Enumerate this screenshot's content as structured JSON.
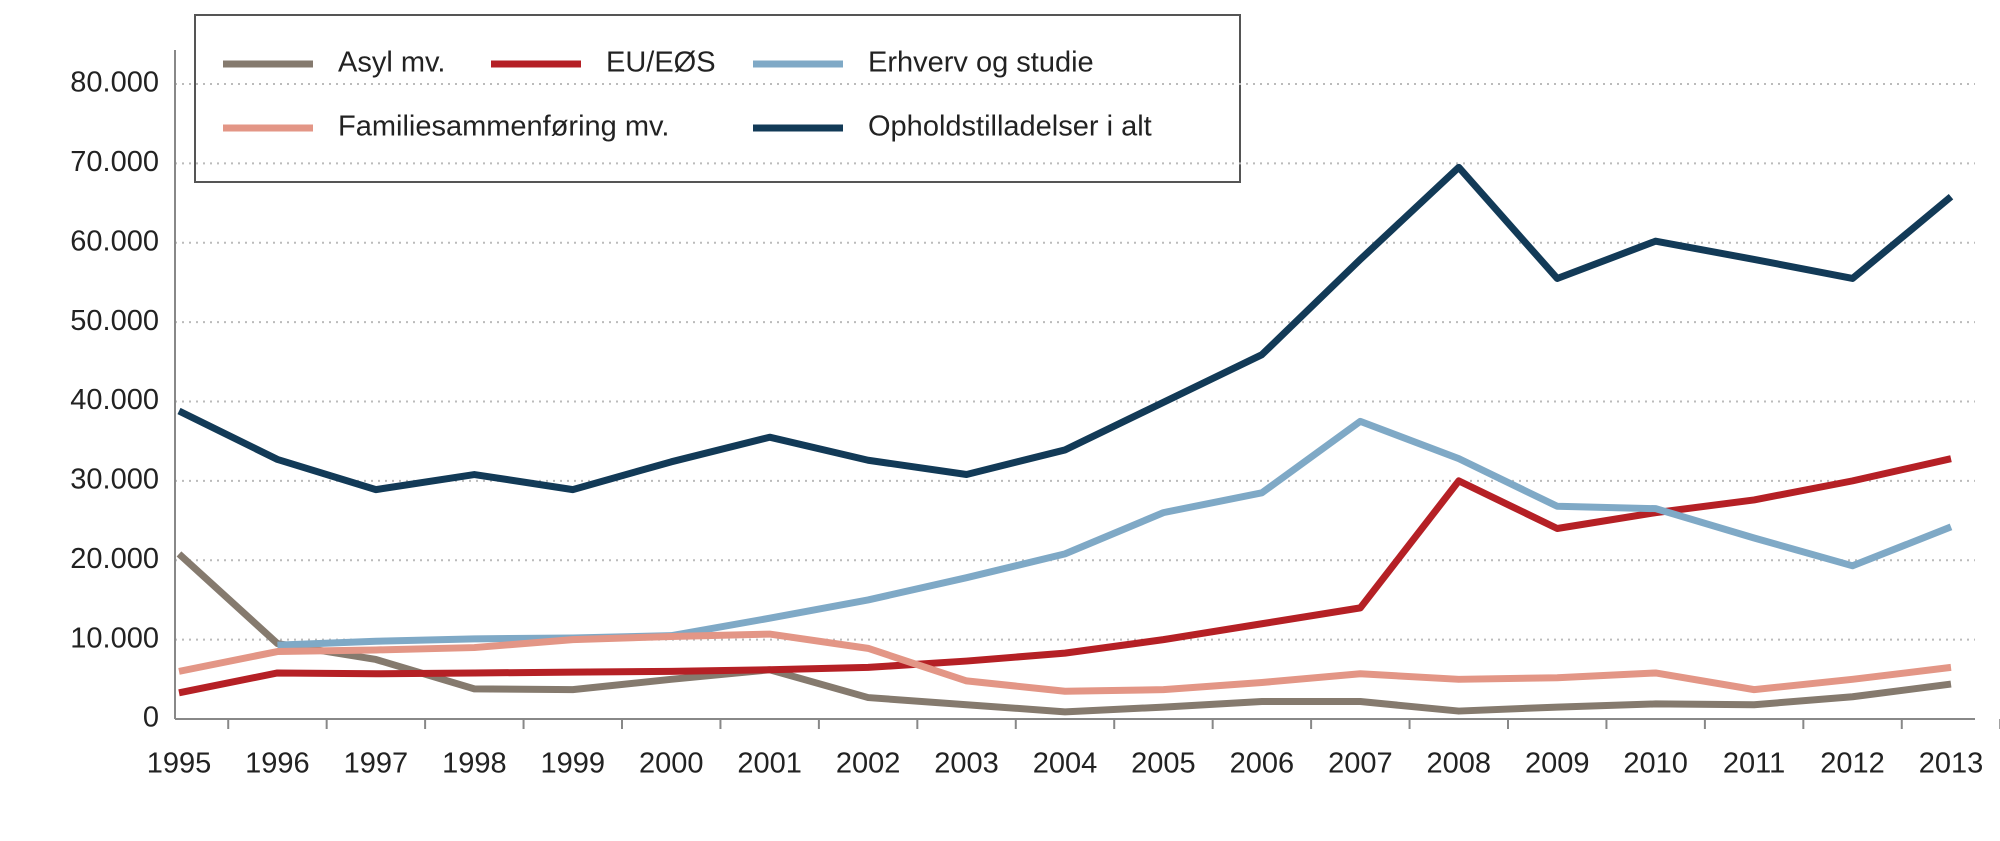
{
  "chart_data": {
    "type": "line",
    "categories": [
      "1995",
      "1996",
      "1997",
      "1998",
      "1999",
      "2000",
      "2001",
      "2002",
      "2003",
      "2004",
      "2005",
      "2006",
      "2007",
      "2008",
      "2009",
      "2010",
      "2011",
      "2012",
      "2013"
    ],
    "series": [
      {
        "name": "Asyl mv.",
        "color": "#857a6e",
        "values": [
          20800,
          9500,
          7500,
          3800,
          3700,
          5000,
          6200,
          2700,
          1800,
          900,
          1500,
          2200,
          2200,
          1000,
          1500,
          1900,
          1800,
          2800,
          4400
        ]
      },
      {
        "name": "EU/EØS",
        "color": "#b52025",
        "values": [
          3300,
          5800,
          5700,
          5800,
          5900,
          6000,
          6200,
          6500,
          7300,
          8300,
          10000,
          12000,
          14000,
          30000,
          24000,
          26000,
          27600,
          30000,
          32800
        ]
      },
      {
        "name": "Erhverv og studie",
        "color": "#7fa9c6",
        "values": [
          null,
          9300,
          9800,
          10100,
          10200,
          10500,
          12700,
          15000,
          17800,
          20800,
          26000,
          28500,
          37500,
          32800,
          26800,
          26500,
          22800,
          19300,
          24200
        ]
      },
      {
        "name": "Familiesammenføring mv.",
        "color": "#e39686",
        "values": [
          6000,
          8500,
          8700,
          9000,
          10000,
          10400,
          10700,
          8900,
          4800,
          3500,
          3700,
          4600,
          5700,
          5000,
          5200,
          5800,
          3700,
          5000,
          6500
        ]
      },
      {
        "name": "Opholdstilladelser i alt",
        "color": "#123a57",
        "values": [
          38800,
          32700,
          28900,
          30800,
          28900,
          32400,
          35500,
          32600,
          30800,
          33900,
          39900,
          45900,
          57900,
          69500,
          55500,
          60200,
          57900,
          55500,
          65800
        ]
      }
    ],
    "ylim": [
      0,
      80000
    ],
    "yticks": [
      0,
      {
        "value": 10000,
        "label": "10.000"
      },
      {
        "value": 20000,
        "label": "20.000"
      },
      {
        "value": 30000,
        "label": "30.000"
      },
      {
        "value": 40000,
        "label": "40.000"
      },
      {
        "value": 50000,
        "label": "50.000"
      },
      {
        "value": 60000,
        "label": "60.000"
      },
      {
        "value": 70000,
        "label": "70.000"
      },
      {
        "value": 80000,
        "label": "80.000"
      }
    ],
    "grid": true
  }
}
